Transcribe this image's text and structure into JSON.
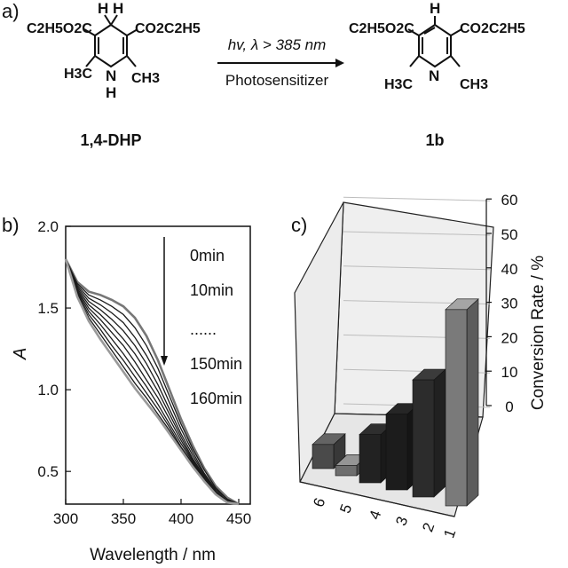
{
  "scheme": {
    "panel_label": "a)",
    "reactant": {
      "name": "1,4-DHP",
      "ester_left": "C2H5O2C",
      "ester_right": "CO2C2H5",
      "methyl_left": "H3C",
      "methyl_right": "CH3",
      "n_label": "N",
      "nh_label": "H",
      "h4_label": "H H"
    },
    "arrow_top": "hv, λ > 385 nm",
    "arrow_bottom": "Photosensitizer",
    "product": {
      "name": "1b",
      "ester_left": "C2H5O2C",
      "ester_right": "CO2C2H5",
      "methyl_left": "H3C",
      "methyl_right": "CH3",
      "n_label": "N",
      "h4_label": "H"
    }
  },
  "chart_data": [
    {
      "panel": "b)",
      "type": "line",
      "xlabel": "Wavelength / nm",
      "ylabel": "A",
      "xlim": [
        300,
        460
      ],
      "ylim": [
        0.3,
        2.0
      ],
      "xticks": [
        300,
        350,
        400,
        450
      ],
      "yticks": [
        0.5,
        1.0,
        1.5,
        2.0
      ],
      "legend": [
        "0min",
        "10min",
        "......",
        "150min",
        "160min"
      ],
      "x": [
        300,
        310,
        320,
        330,
        340,
        350,
        360,
        370,
        380,
        390,
        400,
        410,
        420,
        430,
        440,
        450
      ],
      "series": [
        {
          "values": [
            1.8,
            1.66,
            1.6,
            1.58,
            1.55,
            1.51,
            1.44,
            1.33,
            1.18,
            1.0,
            0.82,
            0.66,
            0.52,
            0.41,
            0.34,
            0.3
          ]
        },
        {
          "values": [
            1.8,
            1.65,
            1.58,
            1.55,
            1.51,
            1.46,
            1.38,
            1.27,
            1.13,
            0.96,
            0.79,
            0.64,
            0.51,
            0.4,
            0.33,
            0.3
          ]
        },
        {
          "values": [
            1.8,
            1.64,
            1.56,
            1.52,
            1.47,
            1.41,
            1.32,
            1.21,
            1.08,
            0.92,
            0.76,
            0.62,
            0.49,
            0.39,
            0.33,
            0.3
          ]
        },
        {
          "values": [
            1.8,
            1.63,
            1.54,
            1.49,
            1.43,
            1.36,
            1.27,
            1.16,
            1.03,
            0.88,
            0.73,
            0.6,
            0.48,
            0.38,
            0.32,
            0.3
          ]
        },
        {
          "values": [
            1.8,
            1.62,
            1.52,
            1.46,
            1.39,
            1.31,
            1.22,
            1.11,
            0.99,
            0.85,
            0.71,
            0.58,
            0.47,
            0.38,
            0.32,
            0.3
          ]
        },
        {
          "values": [
            1.8,
            1.61,
            1.5,
            1.43,
            1.35,
            1.27,
            1.17,
            1.06,
            0.95,
            0.82,
            0.69,
            0.57,
            0.46,
            0.37,
            0.32,
            0.3
          ]
        },
        {
          "values": [
            1.8,
            1.6,
            1.48,
            1.4,
            1.31,
            1.22,
            1.12,
            1.02,
            0.91,
            0.79,
            0.67,
            0.56,
            0.45,
            0.37,
            0.32,
            0.3
          ]
        },
        {
          "values": [
            1.8,
            1.59,
            1.46,
            1.37,
            1.27,
            1.18,
            1.08,
            0.98,
            0.88,
            0.77,
            0.65,
            0.55,
            0.45,
            0.37,
            0.32,
            0.3
          ]
        },
        {
          "values": [
            1.8,
            1.58,
            1.44,
            1.34,
            1.24,
            1.14,
            1.04,
            0.95,
            0.85,
            0.75,
            0.64,
            0.54,
            0.44,
            0.36,
            0.32,
            0.3
          ]
        },
        {
          "values": [
            1.8,
            1.57,
            1.42,
            1.31,
            1.21,
            1.11,
            1.01,
            0.92,
            0.83,
            0.73,
            0.63,
            0.53,
            0.44,
            0.36,
            0.31,
            0.3
          ]
        }
      ],
      "colors": {
        "first": "#777777",
        "middle": "#1a1a1a",
        "last": "#9a9a9a"
      },
      "arrow_direction": "down",
      "grid": false
    },
    {
      "panel": "c)",
      "type": "bar",
      "three_d": true,
      "categories": [
        "1",
        "2",
        "3",
        "4",
        "5",
        "6"
      ],
      "values": [
        57,
        34,
        22,
        14,
        3,
        7
      ],
      "zlabel": "Conversion Rate / %",
      "zlim": [
        0,
        60
      ],
      "zticks": [
        0,
        10,
        20,
        30,
        40,
        50,
        60
      ],
      "grid": true,
      "bar_colors": [
        "#7a7a7a",
        "#2c2c2c",
        "#1c1c1c",
        "#222222",
        "#6e6e6e",
        "#4a4a4a"
      ]
    }
  ]
}
